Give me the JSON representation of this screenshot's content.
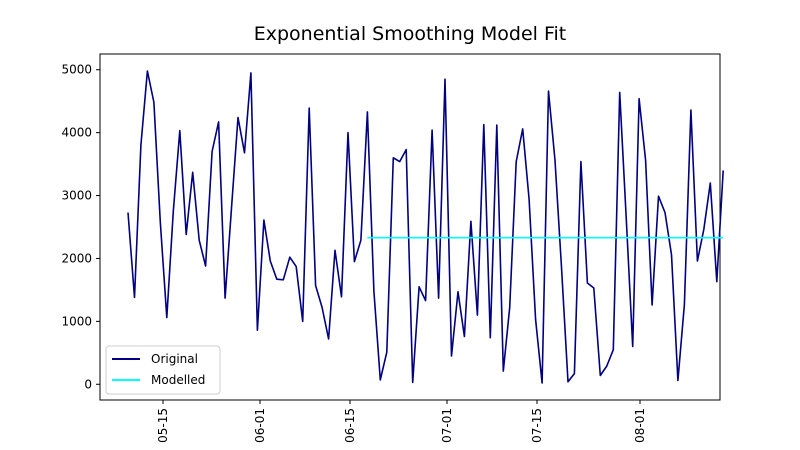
{
  "chart_data": {
    "type": "line",
    "title": "Exponential Smoothing Model Fit",
    "xlabel": "",
    "ylabel": "",
    "x_ticks": [
      "05-15",
      "06-01",
      "06-15",
      "07-01",
      "07-15",
      "08-01"
    ],
    "y_ticks": [
      "0",
      "1000",
      "2000",
      "3000",
      "4000",
      "5000"
    ],
    "ylim": [
      -250,
      5250
    ],
    "legend_position": "lower-left",
    "series": [
      {
        "name": "Original",
        "color": "#000080",
        "values": [
          2730,
          1380,
          3800,
          4980,
          4480,
          2580,
          1060,
          2750,
          4030,
          2380,
          3370,
          2290,
          1880,
          3700,
          4170,
          1370,
          2800,
          4240,
          3680,
          4950,
          860,
          2610,
          1960,
          1670,
          1660,
          2020,
          1870,
          1000,
          4390,
          1570,
          1220,
          720,
          2130,
          1390,
          4000,
          1950,
          2290,
          4330,
          1480,
          70,
          510,
          3600,
          3540,
          3730,
          30,
          1550,
          1330,
          4040,
          1370,
          4850,
          450,
          1470,
          760,
          2590,
          1100,
          4130,
          740,
          4120,
          210,
          1220,
          3540,
          4060,
          2940,
          1030,
          20,
          4660,
          3560,
          1860,
          40,
          170,
          3540,
          1610,
          1530,
          140,
          290,
          550,
          4640,
          2650,
          600,
          4540,
          3560,
          1260,
          2990,
          2730,
          2060,
          60,
          1270,
          4360,
          1960,
          2460,
          3200,
          1630,
          3400
        ]
      },
      {
        "name": "Modelled",
        "color": "#00ffff",
        "start_index": 37,
        "values": [
          2330,
          2330,
          2330,
          2330,
          2330,
          2330,
          2330,
          2330,
          2330,
          2330,
          2330,
          2330,
          2330,
          2330,
          2330,
          2330,
          2330,
          2330,
          2330,
          2330,
          2330,
          2330,
          2330,
          2330,
          2330,
          2330,
          2330,
          2330,
          2330,
          2330,
          2330,
          2330,
          2330,
          2330,
          2330,
          2330,
          2330,
          2330,
          2330,
          2330,
          2330,
          2330,
          2330,
          2330,
          2330,
          2330,
          2330,
          2330,
          2330,
          2330,
          2330,
          2330,
          2330,
          2330,
          2330,
          2330
        ]
      }
    ]
  }
}
